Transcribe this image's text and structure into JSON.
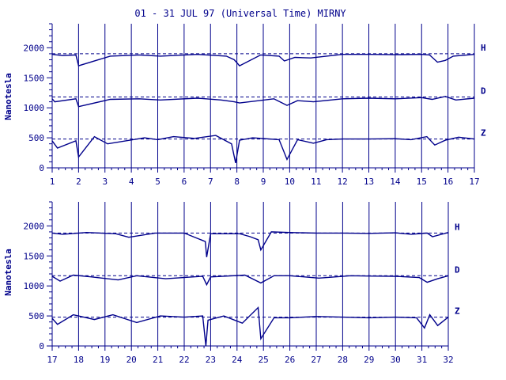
{
  "chart_data": [
    {
      "type": "line",
      "title": "01 - 31 JUL 97 (Universal Time) MIRNY",
      "ylabel": "Nanotesla",
      "xlabel": "",
      "x_ticks": [
        "1",
        "2",
        "3",
        "4",
        "5",
        "6",
        "7",
        "8",
        "9",
        "10",
        "11",
        "12",
        "13",
        "14",
        "15",
        "16",
        "17"
      ],
      "xlim": [
        1,
        17
      ],
      "ylim": [
        0,
        2400
      ],
      "y_ticks": [
        0,
        500,
        1000,
        1500,
        2000
      ],
      "grid": "vertical day lines",
      "baselines": {
        "H": 1900,
        "D": 1180,
        "Z": 480
      },
      "series": [
        {
          "name": "H",
          "x": [
            1,
            1.4,
            1.9,
            2.0,
            3.2,
            4.3,
            5.1,
            6.5,
            7.6,
            7.9,
            8.1,
            8.9,
            9.6,
            9.8,
            10.2,
            10.8,
            12,
            13,
            14,
            15,
            15.3,
            15.6,
            15.9,
            16.2,
            17
          ],
          "y": [
            1890,
            1870,
            1880,
            1700,
            1860,
            1880,
            1860,
            1890,
            1860,
            1800,
            1700,
            1880,
            1860,
            1780,
            1840,
            1830,
            1890,
            1890,
            1885,
            1890,
            1880,
            1760,
            1790,
            1860,
            1890
          ]
        },
        {
          "name": "D",
          "x": [
            1,
            1.1,
            1.9,
            2.0,
            3.2,
            4.3,
            5.1,
            6.5,
            7.4,
            7.9,
            8.1,
            9.4,
            9.9,
            10.3,
            10.9,
            12,
            13,
            14,
            15,
            15.4,
            15.9,
            16.3,
            17
          ],
          "y": [
            1150,
            1100,
            1150,
            1020,
            1140,
            1150,
            1130,
            1160,
            1130,
            1100,
            1080,
            1150,
            1040,
            1120,
            1100,
            1150,
            1160,
            1150,
            1170,
            1140,
            1190,
            1130,
            1160
          ]
        },
        {
          "name": "Z",
          "x": [
            1,
            1.2,
            1.9,
            2.0,
            2.6,
            3.1,
            4.5,
            5.0,
            5.6,
            6.4,
            7.2,
            7.8,
            7.95,
            8.1,
            8.6,
            9.6,
            9.9,
            10.3,
            10.9,
            11.4,
            12,
            13,
            14,
            14.6,
            15.2,
            15.5,
            15.9,
            16.4,
            17
          ],
          "y": [
            450,
            330,
            450,
            180,
            520,
            400,
            500,
            470,
            520,
            490,
            540,
            400,
            80,
            460,
            500,
            470,
            140,
            470,
            410,
            470,
            480,
            480,
            485,
            470,
            520,
            380,
            460,
            510,
            480
          ]
        }
      ]
    },
    {
      "type": "line",
      "title": "",
      "ylabel": "Nanotesla",
      "xlabel": "",
      "x_ticks": [
        "17",
        "18",
        "19",
        "20",
        "21",
        "22",
        "23",
        "24",
        "25",
        "26",
        "27",
        "28",
        "29",
        "30",
        "31",
        "32"
      ],
      "xlim": [
        17,
        32
      ],
      "ylim": [
        0,
        2400
      ],
      "y_ticks": [
        0,
        500,
        1000,
        1500,
        2000
      ],
      "grid": "vertical day lines",
      "baselines": {
        "H": 1880,
        "D": 1170,
        "Z": 480
      },
      "series": [
        {
          "name": "H",
          "x": [
            17,
            17.4,
            18.3,
            19.4,
            19.9,
            20.9,
            22,
            22.8,
            22.85,
            23,
            24.1,
            24.5,
            24.8,
            24.9,
            25.3,
            26,
            27,
            28,
            29,
            30,
            30.6,
            31.2,
            31.4,
            32
          ],
          "y": [
            1880,
            1860,
            1890,
            1870,
            1810,
            1880,
            1880,
            1740,
            1480,
            1870,
            1870,
            1820,
            1770,
            1600,
            1900,
            1890,
            1880,
            1880,
            1875,
            1885,
            1860,
            1880,
            1820,
            1890
          ]
        },
        {
          "name": "D",
          "x": [
            17,
            17.3,
            17.8,
            18.5,
            19.5,
            20.2,
            21.3,
            22.7,
            22.85,
            23,
            24.3,
            24.9,
            25.4,
            26,
            27.1,
            28.3,
            29,
            30,
            30.9,
            31.2,
            31.6,
            32
          ],
          "y": [
            1160,
            1080,
            1180,
            1150,
            1100,
            1170,
            1120,
            1160,
            1020,
            1150,
            1180,
            1050,
            1170,
            1170,
            1130,
            1170,
            1165,
            1160,
            1140,
            1060,
            1120,
            1170
          ]
        },
        {
          "name": "Z",
          "x": [
            17,
            17.2,
            17.8,
            18.6,
            19.3,
            20.2,
            21.1,
            22,
            22.7,
            22.82,
            22.9,
            23.5,
            24.2,
            24.8,
            24.9,
            25.4,
            26,
            27,
            28,
            29,
            30,
            30.8,
            31.1,
            31.3,
            31.6,
            32
          ],
          "y": [
            460,
            360,
            520,
            440,
            520,
            390,
            500,
            480,
            500,
            0,
            430,
            500,
            380,
            640,
            120,
            470,
            470,
            490,
            480,
            470,
            480,
            470,
            300,
            520,
            340,
            480
          ]
        }
      ]
    }
  ]
}
